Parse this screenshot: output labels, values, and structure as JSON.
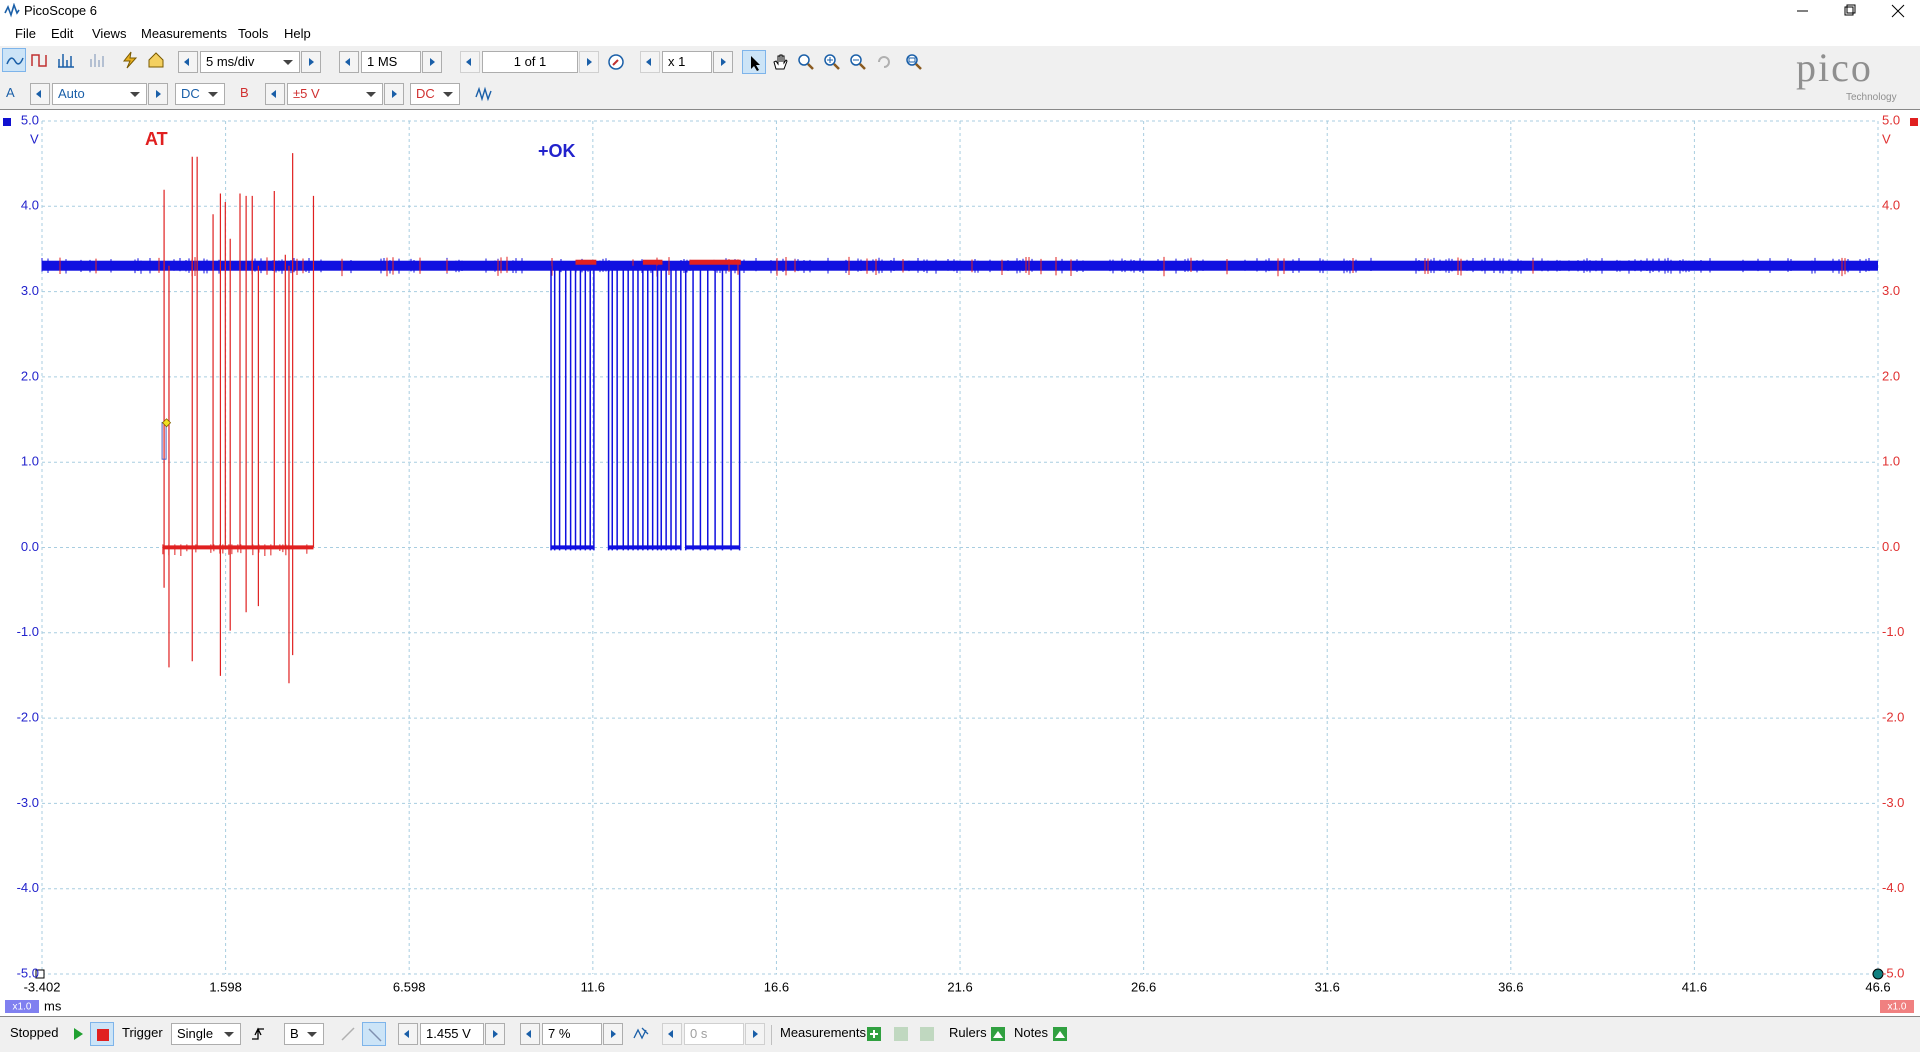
{
  "window": {
    "title": "PicoScope 6"
  },
  "menu": [
    "File",
    "Edit",
    "Views",
    "Measurements",
    "Tools",
    "Help"
  ],
  "toolbar": {
    "timebase": "5 ms/div",
    "samples": "1 MS",
    "buffer": "1 of 1",
    "zoom": "x 1"
  },
  "channels": {
    "a": {
      "name": "A",
      "range": "Auto",
      "coupling": "DC"
    },
    "b": {
      "name": "B",
      "range": "±5 V",
      "coupling": "DC"
    }
  },
  "logo": {
    "brand": "pico",
    "sub": "Technology"
  },
  "scope": {
    "ylim": [
      -5,
      5
    ],
    "yticks": [
      {
        "value": 5,
        "label": "5.0"
      },
      {
        "value": 4,
        "label": "4.0"
      },
      {
        "value": 3,
        "label": "3.0"
      },
      {
        "value": 2,
        "label": "2.0"
      },
      {
        "value": 1,
        "label": "1.0"
      },
      {
        "value": 0,
        "label": "0.0"
      },
      {
        "value": -1,
        "label": "-1.0"
      },
      {
        "value": -2,
        "label": "-2.0"
      },
      {
        "value": -3,
        "label": "-3.0"
      },
      {
        "value": -4,
        "label": "-4.0"
      },
      {
        "value": -5,
        "label": "-5.0"
      }
    ],
    "y_unit": "V",
    "xlim": [
      -3.402,
      46.6
    ],
    "xticks": [
      -3.402,
      1.598,
      6.598,
      11.6,
      16.6,
      21.6,
      26.6,
      31.6,
      36.6,
      41.6,
      46.6
    ],
    "x_unit": "ms",
    "zoom_a": "x1.0",
    "zoom_b": "x1.0",
    "annotations": [
      "AT",
      "+OK"
    ]
  },
  "statusbar": {
    "state": "Stopped",
    "trigger_label": "Trigger",
    "trigger_mode": "Single",
    "trigger_source": "B",
    "threshold": "1.455 V",
    "pretrigger": "7 %",
    "delay": "0 s",
    "measurements": "Measurements",
    "rulers": "Rulers",
    "notes": "Notes"
  }
}
